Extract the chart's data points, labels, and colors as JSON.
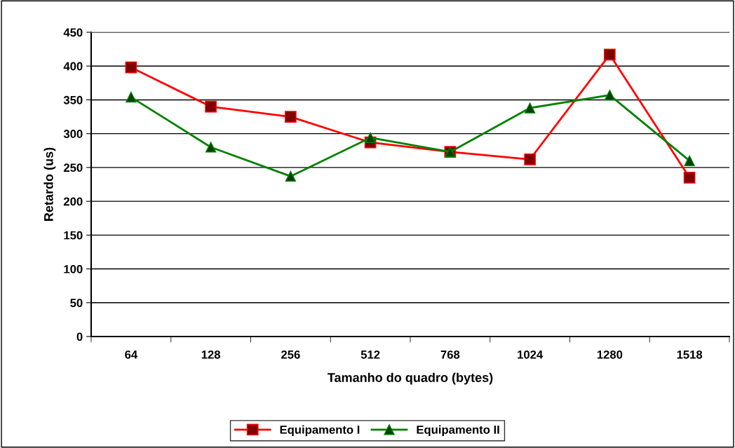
{
  "chart_data": {
    "type": "line",
    "xlabel": "Tamanho do quadro (bytes)",
    "ylabel": "Retardo (us)",
    "categories": [
      "64",
      "128",
      "256",
      "512",
      "768",
      "1024",
      "1280",
      "1518"
    ],
    "series": [
      {
        "name": "Equipamento I",
        "color": "#ff0000",
        "marker": "square",
        "values": [
          398,
          340,
          325,
          287,
          273,
          262,
          417,
          235
        ]
      },
      {
        "name": "Equipamento II",
        "color": "#008000",
        "marker": "triangle",
        "values": [
          354,
          280,
          237,
          294,
          273,
          338,
          357,
          260
        ]
      }
    ],
    "ylim": [
      0,
      450
    ],
    "yticks": [
      0,
      50,
      100,
      150,
      200,
      250,
      300,
      350,
      400,
      450
    ],
    "grid": "y",
    "legend": "bottom",
    "line_style": "solid"
  }
}
